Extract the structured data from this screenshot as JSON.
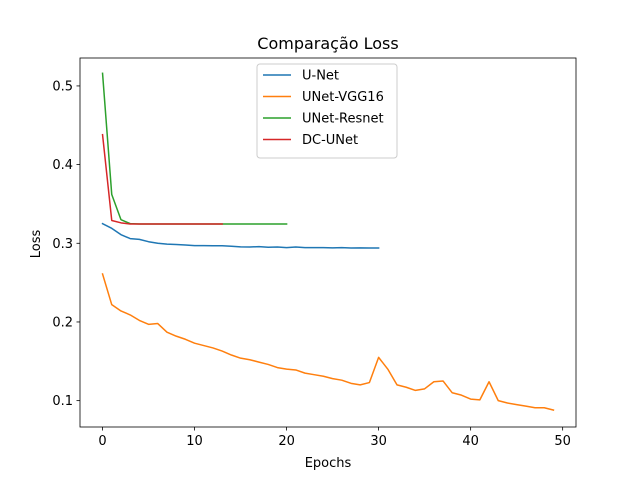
{
  "chart_data": {
    "type": "line",
    "title": "Comparação Loss",
    "xlabel": "Epochs",
    "ylabel": "Loss",
    "xlim": [
      -2.45,
      51.45
    ],
    "ylim": [
      0.0665,
      0.5355
    ],
    "xticks": [
      0,
      10,
      20,
      30,
      40,
      50
    ],
    "yticks": [
      0.1,
      0.2,
      0.3,
      0.4,
      0.5
    ],
    "grid": false,
    "legend_position": "top-center",
    "series": [
      {
        "name": "U-Net",
        "color": "#1f77b4",
        "x": [
          0,
          1,
          2,
          3,
          4,
          5,
          6,
          7,
          8,
          9,
          10,
          11,
          12,
          13,
          14,
          15,
          16,
          17,
          18,
          19,
          20,
          21,
          22,
          23,
          24,
          25,
          26,
          27,
          28,
          29,
          30
        ],
        "values": [
          0.325,
          0.319,
          0.311,
          0.306,
          0.305,
          0.302,
          0.3,
          0.299,
          0.2985,
          0.2978,
          0.297,
          0.297,
          0.2968,
          0.2968,
          0.2962,
          0.2955,
          0.2952,
          0.2958,
          0.295,
          0.2952,
          0.2945,
          0.2952,
          0.2945,
          0.2945,
          0.2945,
          0.2942,
          0.2945,
          0.294,
          0.2942,
          0.294,
          0.294
        ]
      },
      {
        "name": "UNet-VGG16",
        "color": "#ff7f0e",
        "x": [
          0,
          1,
          2,
          3,
          4,
          5,
          6,
          7,
          8,
          9,
          10,
          11,
          12,
          13,
          14,
          15,
          16,
          17,
          18,
          19,
          20,
          21,
          22,
          23,
          24,
          25,
          26,
          27,
          28,
          29,
          30,
          31,
          32,
          33,
          34,
          35,
          36,
          37,
          38,
          39,
          40,
          41,
          42,
          43,
          44,
          45,
          46,
          47,
          48,
          49
        ],
        "values": [
          0.261,
          0.222,
          0.214,
          0.209,
          0.202,
          0.197,
          0.198,
          0.187,
          0.182,
          0.178,
          0.173,
          0.17,
          0.167,
          0.163,
          0.158,
          0.154,
          0.152,
          0.149,
          0.146,
          0.142,
          0.14,
          0.139,
          0.135,
          0.133,
          0.131,
          0.128,
          0.126,
          0.122,
          0.12,
          0.123,
          0.155,
          0.14,
          0.12,
          0.117,
          0.113,
          0.115,
          0.124,
          0.125,
          0.11,
          0.107,
          0.102,
          0.101,
          0.124,
          0.1,
          0.097,
          0.095,
          0.093,
          0.091,
          0.091,
          0.088
        ]
      },
      {
        "name": "UNet-Resnet",
        "color": "#2ca02c",
        "x": [
          0,
          1,
          2,
          3,
          4,
          5,
          6,
          7,
          8,
          9,
          10,
          11,
          12,
          13,
          14,
          15,
          16,
          17,
          18,
          19,
          20
        ],
        "values": [
          0.516,
          0.362,
          0.33,
          0.325,
          0.3245,
          0.3245,
          0.3245,
          0.3245,
          0.3245,
          0.3245,
          0.3245,
          0.3245,
          0.3245,
          0.3245,
          0.3245,
          0.3245,
          0.3245,
          0.3245,
          0.3245,
          0.3245,
          0.3245
        ]
      },
      {
        "name": "DC-UNet",
        "color": "#d62728",
        "x": [
          0,
          1,
          2,
          3,
          4,
          5,
          6,
          7,
          8,
          9,
          10,
          11,
          12,
          13
        ],
        "values": [
          0.438,
          0.329,
          0.326,
          0.3245,
          0.3245,
          0.3245,
          0.3245,
          0.3245,
          0.3245,
          0.3245,
          0.3245,
          0.3245,
          0.3245,
          0.3245
        ]
      }
    ]
  }
}
